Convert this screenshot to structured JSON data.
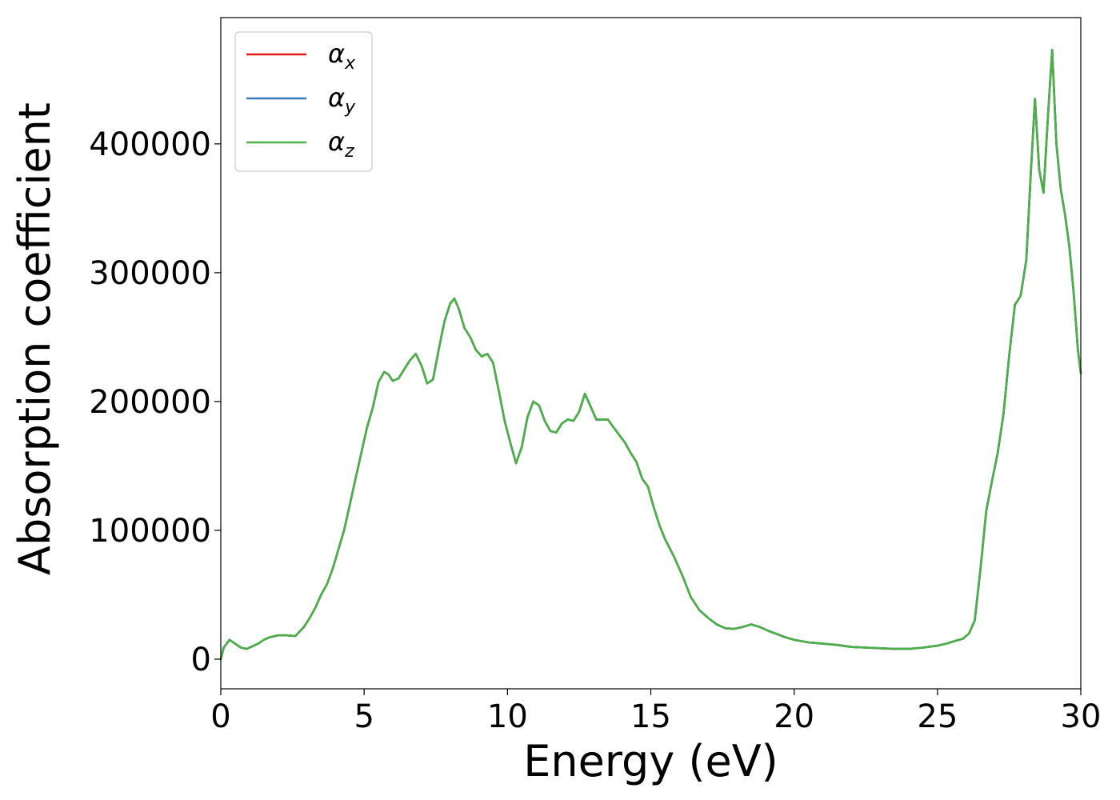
{
  "chart_data": {
    "type": "line",
    "title": "",
    "xlabel": "Energy (eV)",
    "ylabel": "Absorption coefficient",
    "xlim": [
      0,
      30
    ],
    "ylim": [
      -23000,
      498000
    ],
    "xticks": [
      0,
      5,
      10,
      15,
      20,
      25,
      30
    ],
    "yticks": [
      0,
      100000,
      200000,
      300000,
      400000
    ],
    "xtick_labels": [
      "0",
      "5",
      "10",
      "15",
      "20",
      "25",
      "30"
    ],
    "ytick_labels": [
      "0",
      "100000",
      "200000",
      "300000",
      "400000"
    ],
    "grid": false,
    "legend_position": "top-left",
    "x": [
      0,
      0.1,
      0.3,
      0.5,
      0.7,
      0.9,
      1.1,
      1.3,
      1.5,
      1.7,
      2.0,
      2.3,
      2.6,
      2.9,
      3.1,
      3.3,
      3.5,
      3.7,
      3.9,
      4.1,
      4.3,
      4.5,
      4.7,
      4.9,
      5.1,
      5.3,
      5.5,
      5.7,
      5.85,
      6.0,
      6.2,
      6.4,
      6.6,
      6.8,
      7.0,
      7.2,
      7.4,
      7.6,
      7.8,
      8.0,
      8.15,
      8.3,
      8.5,
      8.7,
      8.9,
      9.1,
      9.3,
      9.5,
      9.7,
      9.9,
      10.1,
      10.3,
      10.5,
      10.7,
      10.9,
      11.1,
      11.3,
      11.5,
      11.7,
      11.9,
      12.1,
      12.3,
      12.5,
      12.7,
      12.9,
      13.1,
      13.3,
      13.5,
      13.7,
      13.9,
      14.1,
      14.3,
      14.5,
      14.7,
      14.9,
      15.1,
      15.3,
      15.5,
      15.8,
      16.1,
      16.4,
      16.7,
      17.0,
      17.3,
      17.6,
      17.9,
      18.2,
      18.5,
      18.8,
      19.1,
      19.4,
      19.7,
      20.0,
      20.5,
      21.0,
      21.5,
      22.0,
      22.5,
      23.0,
      23.5,
      24.0,
      24.5,
      25.0,
      25.3,
      25.6,
      25.9,
      26.1,
      26.3,
      26.5,
      26.7,
      26.9,
      27.1,
      27.3,
      27.5,
      27.7,
      27.9,
      28.1,
      28.25,
      28.4,
      28.55,
      28.7,
      28.85,
      29.0,
      29.15,
      29.3,
      29.45,
      29.6,
      29.75,
      29.9,
      30.0
    ],
    "series": [
      {
        "name": "αx",
        "color": "#e41a1c",
        "values": [
          0,
          9000,
          15000,
          12000,
          9000,
          8000,
          10000,
          12000,
          15000,
          17000,
          18500,
          18500,
          18000,
          25000,
          32000,
          40000,
          50000,
          58000,
          70000,
          85000,
          100000,
          120000,
          140000,
          160000,
          180000,
          195000,
          215000,
          223000,
          221000,
          216000,
          218000,
          225000,
          232000,
          237000,
          228000,
          214000,
          217000,
          240000,
          262000,
          276000,
          280000,
          272000,
          257000,
          250000,
          240000,
          235000,
          237000,
          230000,
          208000,
          185000,
          168000,
          152000,
          165000,
          188000,
          200000,
          197000,
          185000,
          177000,
          176000,
          183000,
          186000,
          185000,
          192000,
          206000,
          196000,
          186000,
          186000,
          186000,
          180000,
          174000,
          168000,
          160000,
          153000,
          140000,
          134000,
          118000,
          104000,
          93000,
          80000,
          65000,
          48000,
          38000,
          32000,
          27000,
          24000,
          23500,
          25000,
          27000,
          25000,
          22000,
          19500,
          17000,
          15000,
          13000,
          12000,
          11000,
          9500,
          9000,
          8500,
          8000,
          8000,
          9000,
          10500,
          12000,
          14000,
          16000,
          20000,
          30000,
          70000,
          115000,
          138000,
          160000,
          190000,
          235000,
          275000,
          282000,
          310000,
          375000,
          435000,
          380000,
          362000,
          420000,
          473000,
          400000,
          365000,
          345000,
          320000,
          285000,
          240000,
          222000
        ]
      },
      {
        "name": "αy",
        "color": "#377eb8",
        "values": [
          0,
          9000,
          15000,
          12000,
          9000,
          8000,
          10000,
          12000,
          15000,
          17000,
          18500,
          18500,
          18000,
          25000,
          32000,
          40000,
          50000,
          58000,
          70000,
          85000,
          100000,
          120000,
          140000,
          160000,
          180000,
          195000,
          215000,
          223000,
          221000,
          216000,
          218000,
          225000,
          232000,
          237000,
          228000,
          214000,
          217000,
          240000,
          262000,
          276000,
          280000,
          272000,
          257000,
          250000,
          240000,
          235000,
          237000,
          230000,
          208000,
          185000,
          168000,
          152000,
          165000,
          188000,
          200000,
          197000,
          185000,
          177000,
          176000,
          183000,
          186000,
          185000,
          192000,
          206000,
          196000,
          186000,
          186000,
          186000,
          180000,
          174000,
          168000,
          160000,
          153000,
          140000,
          134000,
          118000,
          104000,
          93000,
          80000,
          65000,
          48000,
          38000,
          32000,
          27000,
          24000,
          23500,
          25000,
          27000,
          25000,
          22000,
          19500,
          17000,
          15000,
          13000,
          12000,
          11000,
          9500,
          9000,
          8500,
          8000,
          8000,
          9000,
          10500,
          12000,
          14000,
          16000,
          20000,
          30000,
          70000,
          115000,
          138000,
          160000,
          190000,
          235000,
          275000,
          282000,
          310000,
          375000,
          435000,
          380000,
          362000,
          420000,
          473000,
          400000,
          365000,
          345000,
          320000,
          285000,
          240000,
          222000
        ]
      },
      {
        "name": "αz",
        "color": "#4daf4a",
        "values": [
          0,
          9000,
          15000,
          12000,
          9000,
          8000,
          10000,
          12000,
          15000,
          17000,
          18500,
          18500,
          18000,
          25000,
          32000,
          40000,
          50000,
          58000,
          70000,
          85000,
          100000,
          120000,
          140000,
          160000,
          180000,
          195000,
          215000,
          223000,
          221000,
          216000,
          218000,
          225000,
          232000,
          237000,
          228000,
          214000,
          217000,
          240000,
          262000,
          276000,
          280000,
          272000,
          257000,
          250000,
          240000,
          235000,
          237000,
          230000,
          208000,
          185000,
          168000,
          152000,
          165000,
          188000,
          200000,
          197000,
          185000,
          177000,
          176000,
          183000,
          186000,
          185000,
          192000,
          206000,
          196000,
          186000,
          186000,
          186000,
          180000,
          174000,
          168000,
          160000,
          153000,
          140000,
          134000,
          118000,
          104000,
          93000,
          80000,
          65000,
          48000,
          38000,
          32000,
          27000,
          24000,
          23500,
          25000,
          27000,
          25000,
          22000,
          19500,
          17000,
          15000,
          13000,
          12000,
          11000,
          9500,
          9000,
          8500,
          8000,
          8000,
          9000,
          10500,
          12000,
          14000,
          16000,
          20000,
          30000,
          70000,
          115000,
          138000,
          160000,
          190000,
          235000,
          275000,
          282000,
          310000,
          375000,
          435000,
          380000,
          362000,
          420000,
          473000,
          400000,
          365000,
          345000,
          320000,
          285000,
          240000,
          222000
        ]
      }
    ],
    "legend": [
      {
        "symbol": "α",
        "sub": "x",
        "color": "#e41a1c"
      },
      {
        "symbol": "α",
        "sub": "y",
        "color": "#377eb8"
      },
      {
        "symbol": "α",
        "sub": "z",
        "color": "#4daf4a"
      }
    ]
  }
}
